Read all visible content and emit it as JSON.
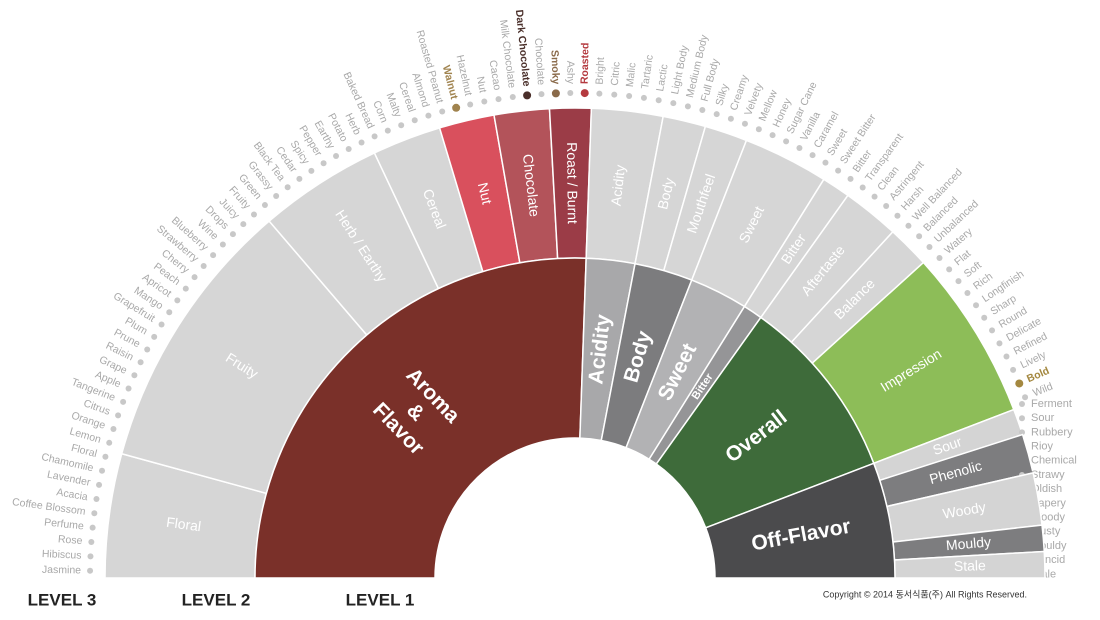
{
  "levels": [
    "LEVEL 3",
    "LEVEL 2",
    "LEVEL 1"
  ],
  "copyright": "Copyright © 2014 동서식품(주) All Rights Reserved.",
  "wheel": [
    {
      "label_lines": [
        "Aroma",
        "&",
        "Flavor"
      ],
      "color": "#7a3029",
      "children": [
        {
          "label": "Floral",
          "color": "#d6d6d6",
          "terms": [
            "Jasmine",
            "Hibiscus",
            "Rose",
            "Perfume",
            "Coffee Blossom",
            "Acacia",
            "Lavender",
            "Chamomile",
            "Floral"
          ]
        },
        {
          "label": "Fruity",
          "color": "#d6d6d6",
          "terms": [
            "Lemon",
            "Orange",
            "Citrus",
            "Tangerine",
            "Apple",
            "Grape",
            "Raisin",
            "Prune",
            "Plum",
            "Grapefruit",
            "Mango",
            "Apricot",
            "Peach",
            "Cherry",
            "Strawberry",
            "Blueberry",
            "Wine",
            "Drops",
            "Juicy",
            "Fruity"
          ]
        },
        {
          "label": "Herb / Earthy",
          "color": "#d6d6d6",
          "terms": [
            "Green",
            "Grassy",
            "Black Tea",
            "Cedar",
            "Spicy",
            "Pepper",
            "Earthy",
            "Potato",
            "Herb"
          ]
        },
        {
          "label": "Cereal",
          "color": "#d6d6d6",
          "terms": [
            "Baked Bread",
            "Corn",
            "Malty",
            "Cereal",
            "Almond"
          ]
        },
        {
          "label": "Nut",
          "color": "#d9505d",
          "terms": [
            "Roasted Peanut",
            {
              "label": "Walnut",
              "color": "#a0834e"
            },
            "Hazelnut",
            "Nut"
          ]
        },
        {
          "label": "Chocolate",
          "color": "#b3535a",
          "terms": [
            "Cacao",
            "Milk Chocolate",
            {
              "label": "Dark Chocolate",
              "color": "#4a2f2a"
            },
            "Chocolate"
          ]
        },
        {
          "label": "Roast / Burnt",
          "color": "#9b3c47",
          "terms": [
            {
              "label": "Smoky",
              "color": "#8a6a4a"
            },
            "Ashy",
            {
              "label": "Roasted",
              "color": "#b43a3f"
            }
          ]
        }
      ]
    },
    {
      "label": "Acidity",
      "color": "#a8a8aa",
      "children": [
        {
          "label": "Acidity",
          "color": "#d6d6d6",
          "terms": [
            "Bright",
            "Citric",
            "Malic",
            "Tartaric",
            "Lactic"
          ]
        }
      ]
    },
    {
      "label": "Body",
      "color": "#7c7c7e",
      "children": [
        {
          "label": "Body",
          "color": "#d6d6d6",
          "terms": [
            "Light Body",
            "Medium Body",
            "Full Body"
          ]
        },
        {
          "label": "Mouthfeel",
          "color": "#d6d6d6",
          "terms": [
            "Silky",
            "Creamy",
            "Velvety"
          ]
        }
      ]
    },
    {
      "label": "Sweet",
      "color": "#b2b2b4",
      "children": [
        {
          "label": "Sweet",
          "color": "#d6d6d6",
          "terms": [
            "Mellow",
            "Honey",
            "Sugar Cane",
            "Vanilla",
            "Caramel",
            "Sweet"
          ]
        }
      ]
    },
    {
      "label": "Bitter",
      "color": "#959597",
      "children": [
        {
          "label": "Bitter",
          "color": "#d6d6d6",
          "terms": [
            "Sweet Bitter",
            "Bitter"
          ]
        }
      ]
    },
    {
      "label": "Overall",
      "color": "#3e6b3a",
      "children": [
        {
          "label": "Aftertaste",
          "color": "#d6d6d6",
          "terms": [
            "Transparent",
            "Clean",
            "Astringent",
            "Harsh"
          ]
        },
        {
          "label": "Balance",
          "color": "#d6d6d6",
          "terms": [
            "Well Balanced",
            "Balanced",
            "Unbalanced"
          ]
        },
        {
          "label": "Impression",
          "color": "#8dbd58",
          "terms": [
            "Watery",
            "Flat",
            "Soft",
            "Rich",
            "Longfinish",
            "Sharp",
            "Round",
            "Delicate",
            "Refined",
            "Lively",
            {
              "label": "Bold",
              "color": "#a48840"
            },
            "Wild"
          ]
        }
      ]
    },
    {
      "label": "Off-Flavor",
      "color": "#4b4b4d",
      "children": [
        {
          "label": "Sour",
          "color": "#d4d4d4",
          "terms": [
            "Ferment",
            "Sour"
          ]
        },
        {
          "label": "Phenolic",
          "color": "#7d7d7f",
          "terms": [
            "Rubbery",
            "Rioy",
            "Chemical"
          ]
        },
        {
          "label": "Woody",
          "color": "#d4d4d4",
          "terms": [
            "Strawy",
            "Oldish",
            "Papery",
            "Woody"
          ]
        },
        {
          "label": "Mouldy",
          "color": "#7d7d7f",
          "terms": [
            "Musty",
            "Mouldy"
          ]
        },
        {
          "label": "Stale",
          "color": "#d4d4d4",
          "terms": [
            "Rancid",
            "Stale"
          ]
        }
      ]
    }
  ]
}
